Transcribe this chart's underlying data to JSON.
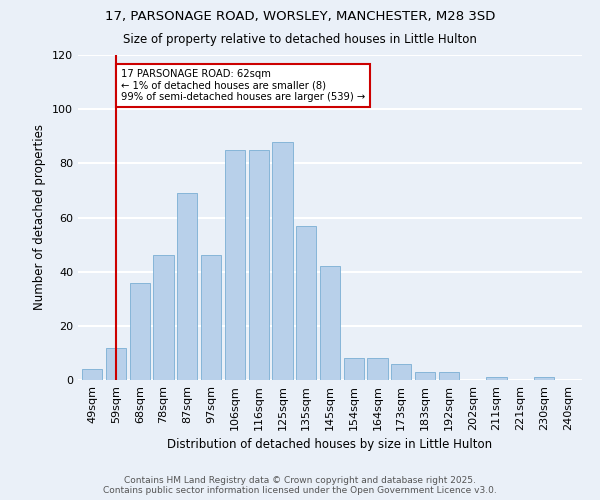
{
  "title_line1": "17, PARSONAGE ROAD, WORSLEY, MANCHESTER, M28 3SD",
  "title_line2": "Size of property relative to detached houses in Little Hulton",
  "xlabel": "Distribution of detached houses by size in Little Hulton",
  "ylabel": "Number of detached properties",
  "categories": [
    "49sqm",
    "59sqm",
    "68sqm",
    "78sqm",
    "87sqm",
    "97sqm",
    "106sqm",
    "116sqm",
    "125sqm",
    "135sqm",
    "145sqm",
    "154sqm",
    "164sqm",
    "173sqm",
    "183sqm",
    "192sqm",
    "202sqm",
    "211sqm",
    "221sqm",
    "230sqm",
    "240sqm"
  ],
  "values": [
    4,
    12,
    36,
    46,
    69,
    46,
    85,
    85,
    88,
    57,
    42,
    8,
    8,
    6,
    3,
    3,
    0,
    1,
    0,
    1,
    0
  ],
  "bar_color": "#b8d0ea",
  "bar_edge_color": "#7aafd4",
  "reference_line_color": "#cc0000",
  "annotation_text": "17 PARSONAGE ROAD: 62sqm\n← 1% of detached houses are smaller (8)\n99% of semi-detached houses are larger (539) →",
  "annotation_box_color": "#ffffff",
  "annotation_box_edge_color": "#cc0000",
  "ylim": [
    0,
    120
  ],
  "yticks": [
    0,
    20,
    40,
    60,
    80,
    100,
    120
  ],
  "footer_line1": "Contains HM Land Registry data © Crown copyright and database right 2025.",
  "footer_line2": "Contains public sector information licensed under the Open Government Licence v3.0.",
  "background_color": "#eaf0f8",
  "grid_color": "#ffffff"
}
